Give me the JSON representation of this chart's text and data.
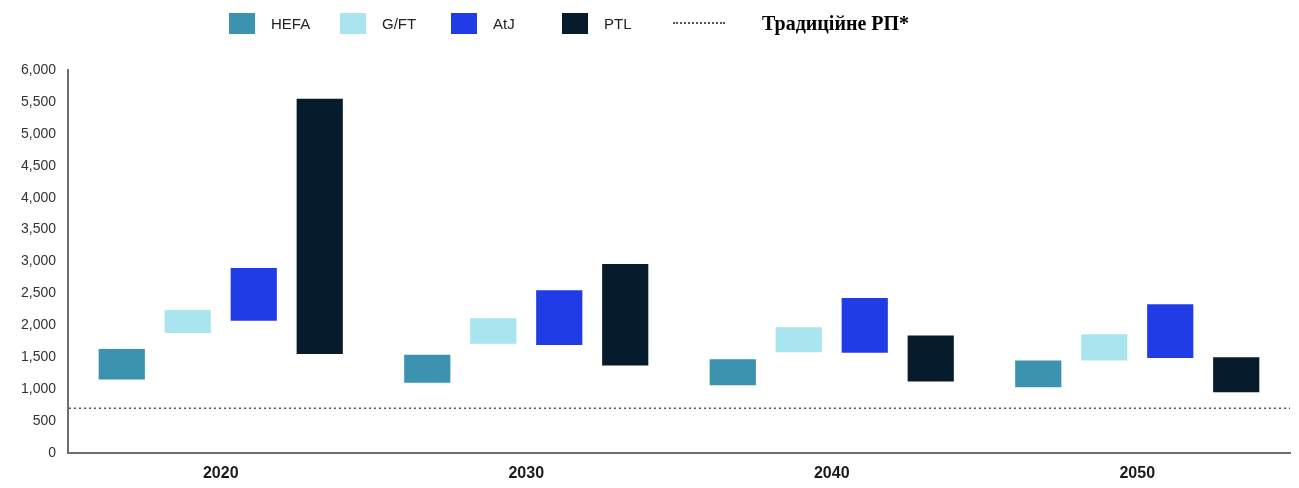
{
  "chart_data": {
    "type": "bar",
    "categories": [
      "2020",
      "2030",
      "2040",
      "2050"
    ],
    "legend": "top",
    "ylim": [
      0,
      6000
    ],
    "yticks": [
      0,
      500,
      {
        "value": 1000,
        "label": "1,000"
      },
      {
        "value": 1500,
        "label": "1,500"
      },
      {
        "value": 2000,
        "label": "2,000"
      },
      {
        "value": 2500,
        "label": "2,500"
      },
      {
        "value": 3000,
        "label": "3,000"
      },
      {
        "value": 3500,
        "label": "3,500"
      },
      {
        "value": 4000,
        "label": "4,000"
      },
      {
        "value": 4500,
        "label": "4,500"
      },
      {
        "value": 5000,
        "label": "5,000"
      },
      {
        "value": 5500,
        "label": "5,500"
      },
      {
        "value": 6000,
        "label": "6,000"
      }
    ],
    "series": [
      {
        "name": "HEFA",
        "color": "#3b93b0",
        "values": [
          480,
          440,
          410,
          420
        ],
        "base": [
          1150,
          1100,
          1060,
          1030
        ]
      },
      {
        "name": "G/FT",
        "color": "#a9e5ee",
        "values": [
          360,
          400,
          390,
          410
        ],
        "base": [
          1880,
          1710,
          1580,
          1450
        ]
      },
      {
        "name": "AtJ",
        "color": "#1f3ce6",
        "values": [
          830,
          860,
          860,
          840
        ],
        "base": [
          2070,
          1690,
          1570,
          1490
        ]
      },
      {
        "name": "PTL",
        "color": "#061b2b",
        "values": [
          4000,
          1590,
          720,
          550
        ],
        "base": [
          1550,
          1370,
          1120,
          950
        ]
      }
    ],
    "ref_lines": [
      {
        "axis": "y",
        "value": 700,
        "label": "Традиційне РП*",
        "line_style": "dotted",
        "color": "#555555"
      }
    ]
  }
}
